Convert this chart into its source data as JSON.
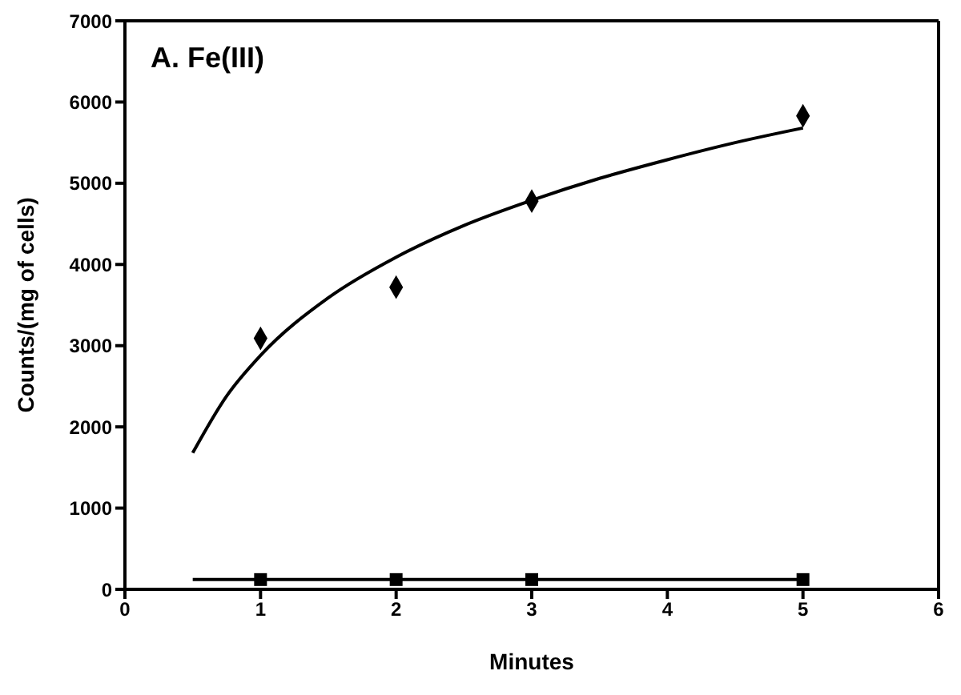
{
  "chart_data": {
    "type": "scatter",
    "xlabel": "Minutes",
    "ylabel": "Counts/(mg of cells)",
    "annotations": [
      "A. Fe(III)"
    ],
    "xlim": [
      0,
      6
    ],
    "xticks": [
      0,
      1,
      2,
      3,
      4,
      5,
      6
    ],
    "ylim": [
      0,
      7000
    ],
    "yticks": [
      0,
      1000,
      2000,
      3000,
      4000,
      5000,
      6000,
      7000
    ],
    "series": [
      {
        "marker": "diamond",
        "color": "#000000",
        "x": [
          1,
          2,
          3,
          5
        ],
        "values": [
          3090,
          3720,
          4780,
          5830
        ]
      },
      {
        "marker": "square",
        "color": "#000000",
        "x": [
          1,
          2,
          3,
          5
        ],
        "values": [
          120,
          120,
          120,
          120
        ]
      },
      {
        "type": "line",
        "marker": "none",
        "color": "#000000",
        "x": [
          0.5,
          0.75,
          1,
          1.5,
          2,
          2.5,
          3,
          3.5,
          4,
          4.5,
          5
        ],
        "values": [
          1680,
          2380,
          2880,
          3590,
          4090,
          4480,
          4790,
          5060,
          5290,
          5500,
          5680
        ]
      },
      {
        "type": "line",
        "marker": "none",
        "color": "#000000",
        "x": [
          0.5,
          5
        ],
        "values": [
          120,
          120
        ]
      }
    ]
  }
}
